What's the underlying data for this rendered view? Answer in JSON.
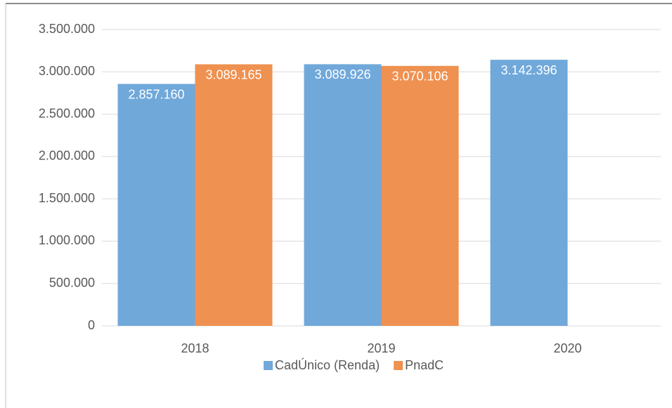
{
  "chart_data": {
    "type": "bar",
    "categories": [
      "2018",
      "2019",
      "2020"
    ],
    "series": [
      {
        "name": "CadÚnico (Renda)",
        "color": "#70a8da",
        "values": [
          2857160,
          3089926,
          3142396
        ],
        "value_labels": [
          "2.857.160",
          "3.089.926",
          "3.142.396"
        ]
      },
      {
        "name": "PnadC",
        "color": "#ef9150",
        "values": [
          3089165,
          3070106,
          null
        ],
        "value_labels": [
          "3.089.165",
          "3.070.106",
          null
        ]
      }
    ],
    "ylim": [
      0,
      3500000
    ],
    "yticks": [
      {
        "value": 0,
        "label": "0"
      },
      {
        "value": 500000,
        "label": "500.000"
      },
      {
        "value": 1000000,
        "label": "1.000.000"
      },
      {
        "value": 1500000,
        "label": "1.500.000"
      },
      {
        "value": 2000000,
        "label": "2.000.000"
      },
      {
        "value": 2500000,
        "label": "2.500.000"
      },
      {
        "value": 3000000,
        "label": "3.000.000"
      },
      {
        "value": 3500000,
        "label": "3.500.000"
      }
    ],
    "grid": true,
    "legend": "bottom"
  }
}
